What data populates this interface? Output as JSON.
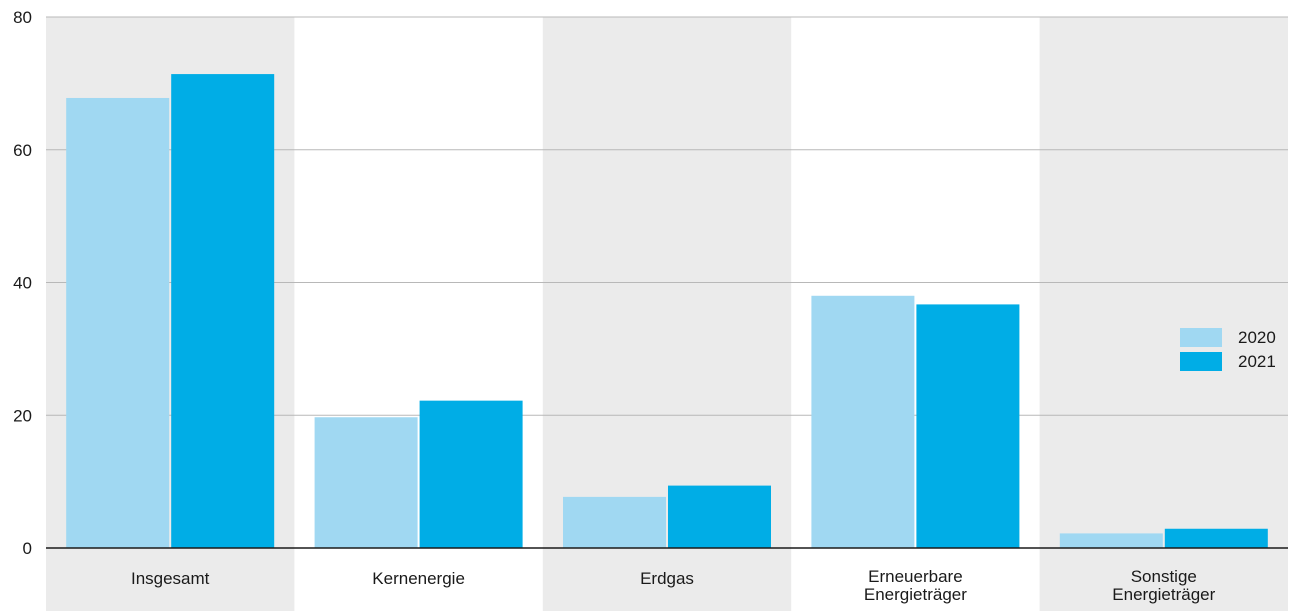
{
  "chart_data": {
    "type": "bar",
    "categories": [
      [
        "Insgesamt"
      ],
      [
        "Kernenergie"
      ],
      [
        "Erdgas"
      ],
      [
        "Erneuerbare",
        "Energieträger"
      ],
      [
        "Sonstige",
        "Energieträger"
      ]
    ],
    "series": [
      {
        "name": "2020",
        "color": "#a0d8f2",
        "values": [
          67.8,
          19.7,
          7.7,
          38.0,
          2.2
        ]
      },
      {
        "name": "2021",
        "color": "#00ade6",
        "values": [
          71.4,
          22.2,
          9.4,
          36.7,
          2.9
        ]
      }
    ],
    "ylim": [
      0,
      80
    ],
    "yticks": [
      0,
      20,
      40,
      60,
      80
    ],
    "grid": true,
    "legend_position": "right",
    "alternating_band_color": "#ebebeb"
  }
}
